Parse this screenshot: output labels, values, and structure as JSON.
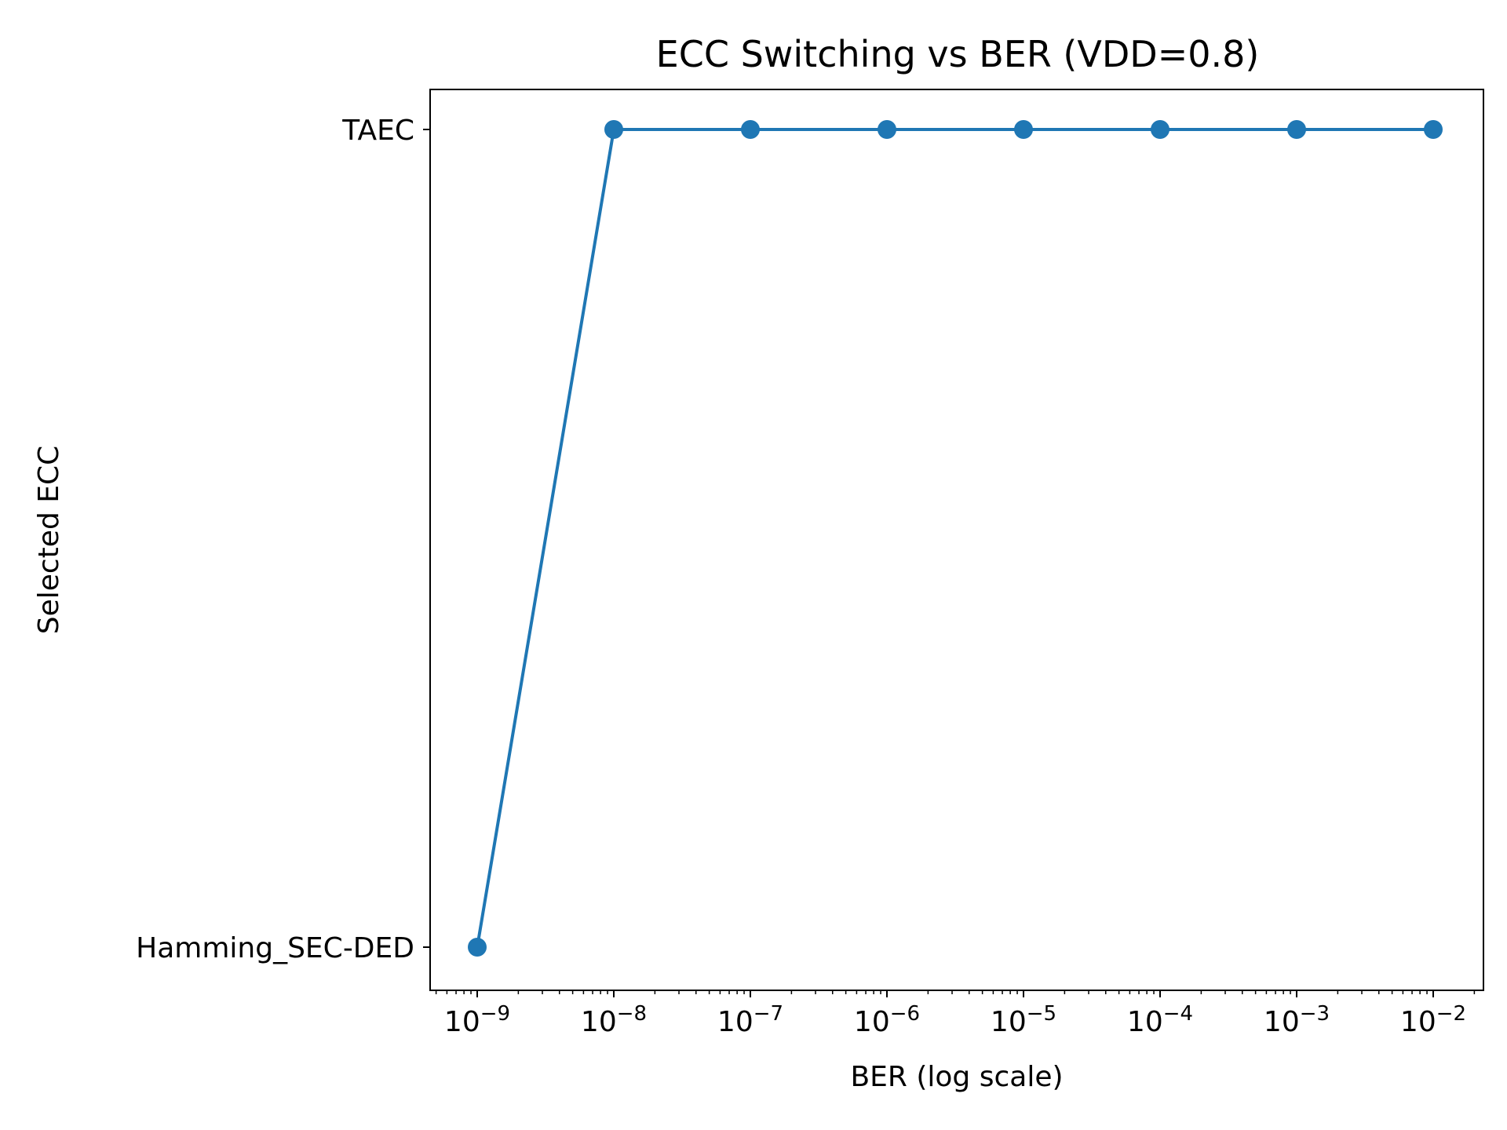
{
  "chart_data": {
    "type": "line",
    "title": "ECC Switching vs BER (VDD=0.8)",
    "xlabel": "BER (log scale)",
    "ylabel": "Selected ECC",
    "x_scale": "log",
    "x_ticks": [
      {
        "base": "10",
        "exp": "−9"
      },
      {
        "base": "10",
        "exp": "−8"
      },
      {
        "base": "10",
        "exp": "−7"
      },
      {
        "base": "10",
        "exp": "−6"
      },
      {
        "base": "10",
        "exp": "−5"
      },
      {
        "base": "10",
        "exp": "−4"
      },
      {
        "base": "10",
        "exp": "−3"
      },
      {
        "base": "10",
        "exp": "−2"
      }
    ],
    "y_categories": [
      "Hamming_SEC-DED",
      "TAEC"
    ],
    "series": [
      {
        "x": [
          1e-09,
          1e-08,
          1e-07,
          1e-06,
          1e-05,
          0.0001,
          0.001,
          0.01
        ],
        "y": [
          "Hamming_SEC-DED",
          "TAEC",
          "TAEC",
          "TAEC",
          "TAEC",
          "TAEC",
          "TAEC",
          "TAEC"
        ],
        "color": "#1f77b4",
        "marker": "circle"
      }
    ],
    "grid": false,
    "legend": "none"
  }
}
